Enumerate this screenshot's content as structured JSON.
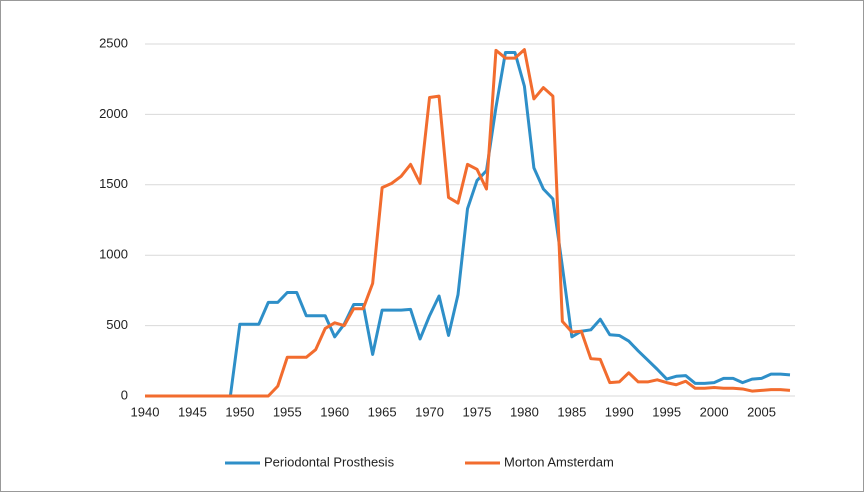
{
  "chart_data": {
    "type": "line",
    "x": [
      1940,
      1941,
      1942,
      1943,
      1944,
      1945,
      1946,
      1947,
      1948,
      1949,
      1950,
      1951,
      1952,
      1953,
      1954,
      1955,
      1956,
      1957,
      1958,
      1959,
      1960,
      1961,
      1962,
      1963,
      1964,
      1965,
      1966,
      1967,
      1968,
      1969,
      1970,
      1971,
      1972,
      1973,
      1974,
      1975,
      1976,
      1977,
      1978,
      1979,
      1980,
      1981,
      1982,
      1983,
      1984,
      1985,
      1986,
      1987,
      1988,
      1989,
      1990,
      1991,
      1992,
      1993,
      1994,
      1995,
      1996,
      1997,
      1998,
      1999,
      2000,
      2001,
      2002,
      2003,
      2004,
      2005,
      2006,
      2007,
      2008
    ],
    "series": [
      {
        "name": "Periodontal Prosthesis",
        "color": "#2e8fc8",
        "values": [
          0,
          0,
          0,
          0,
          0,
          0,
          0,
          0,
          0,
          0,
          510,
          510,
          510,
          665,
          665,
          735,
          735,
          570,
          570,
          570,
          420,
          510,
          650,
          650,
          295,
          610,
          610,
          610,
          615,
          405,
          570,
          710,
          430,
          720,
          1330,
          1530,
          1600,
          2050,
          2440,
          2440,
          2200,
          1620,
          1470,
          1400,
          920,
          420,
          460,
          470,
          545,
          435,
          430,
          390,
          320,
          255,
          190,
          120,
          140,
          145,
          90,
          90,
          95,
          125,
          125,
          95,
          120,
          125,
          155,
          155,
          150
        ]
      },
      {
        "name": "Morton Amsterdam",
        "color": "#f26c2e",
        "values": [
          0,
          0,
          0,
          0,
          0,
          0,
          0,
          0,
          0,
          0,
          0,
          0,
          0,
          0,
          70,
          275,
          275,
          275,
          330,
          480,
          520,
          500,
          620,
          620,
          800,
          1480,
          1510,
          1560,
          1645,
          1510,
          2120,
          2130,
          1410,
          1370,
          1645,
          1610,
          1470,
          2455,
          2400,
          2400,
          2460,
          2110,
          2190,
          2130,
          530,
          455,
          460,
          265,
          260,
          95,
          100,
          165,
          100,
          100,
          115,
          95,
          80,
          105,
          55,
          55,
          60,
          55,
          55,
          50,
          35,
          40,
          45,
          45,
          40
        ]
      }
    ],
    "xlim": [
      1940,
      2008
    ],
    "xticks": [
      1940,
      1945,
      1950,
      1955,
      1960,
      1965,
      1970,
      1975,
      1980,
      1985,
      1990,
      1995,
      2000,
      2005
    ],
    "ylim": [
      0,
      2500
    ],
    "yticks": [
      0,
      500,
      1000,
      1500,
      2000,
      2500
    ],
    "grid": true,
    "legend": "bottom"
  }
}
